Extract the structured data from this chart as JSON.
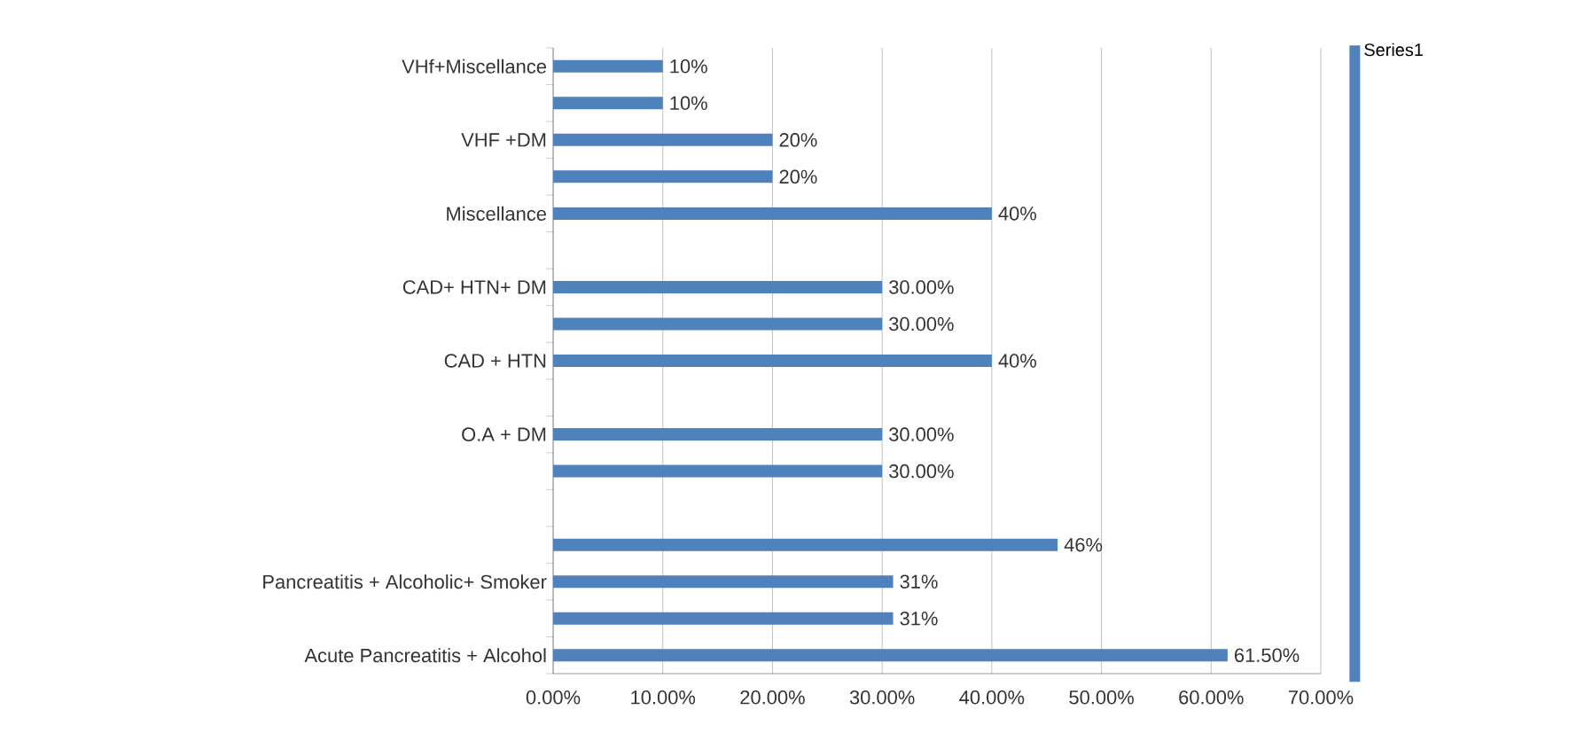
{
  "chart_data": {
    "type": "bar",
    "orientation": "horizontal",
    "categories": [
      "VHf+Miscellance",
      null,
      "VHF +DM",
      null,
      "Miscellance",
      null,
      "CAD+ HTN+ DM",
      null,
      "CAD + HTN",
      null,
      "O.A + DM",
      null,
      null,
      null,
      "Pancreatitis + Alcoholic+ Smoker",
      null,
      "Acute Pancreatitis + Alcohol"
    ],
    "series": [
      {
        "name": "Series1",
        "color": "#4f81bd",
        "values": [
          10,
          10,
          20,
          20,
          40,
          null,
          30,
          30,
          40,
          null,
          30,
          30,
          null,
          46,
          31,
          31,
          61.5
        ],
        "value_labels": [
          "10%",
          "10%",
          "20%",
          "20%",
          "40%",
          null,
          "30.00%",
          "30.00%",
          "40%",
          null,
          "30.00%",
          "30.00%",
          null,
          "46%",
          "31%",
          "31%",
          "61.50%"
        ]
      }
    ],
    "xlim": [
      0,
      70
    ],
    "xticks": [
      {
        "value": 0,
        "label": "0.00%"
      },
      {
        "value": 10,
        "label": "10.00%"
      },
      {
        "value": 20,
        "label": "20.00%"
      },
      {
        "value": 30,
        "label": "30.00%"
      },
      {
        "value": 40,
        "label": "40.00%"
      },
      {
        "value": 50,
        "label": "50.00%"
      },
      {
        "value": 60,
        "label": "60.00%"
      },
      {
        "value": 70,
        "label": "70.00%"
      }
    ],
    "grid": "x",
    "legend": "right"
  }
}
